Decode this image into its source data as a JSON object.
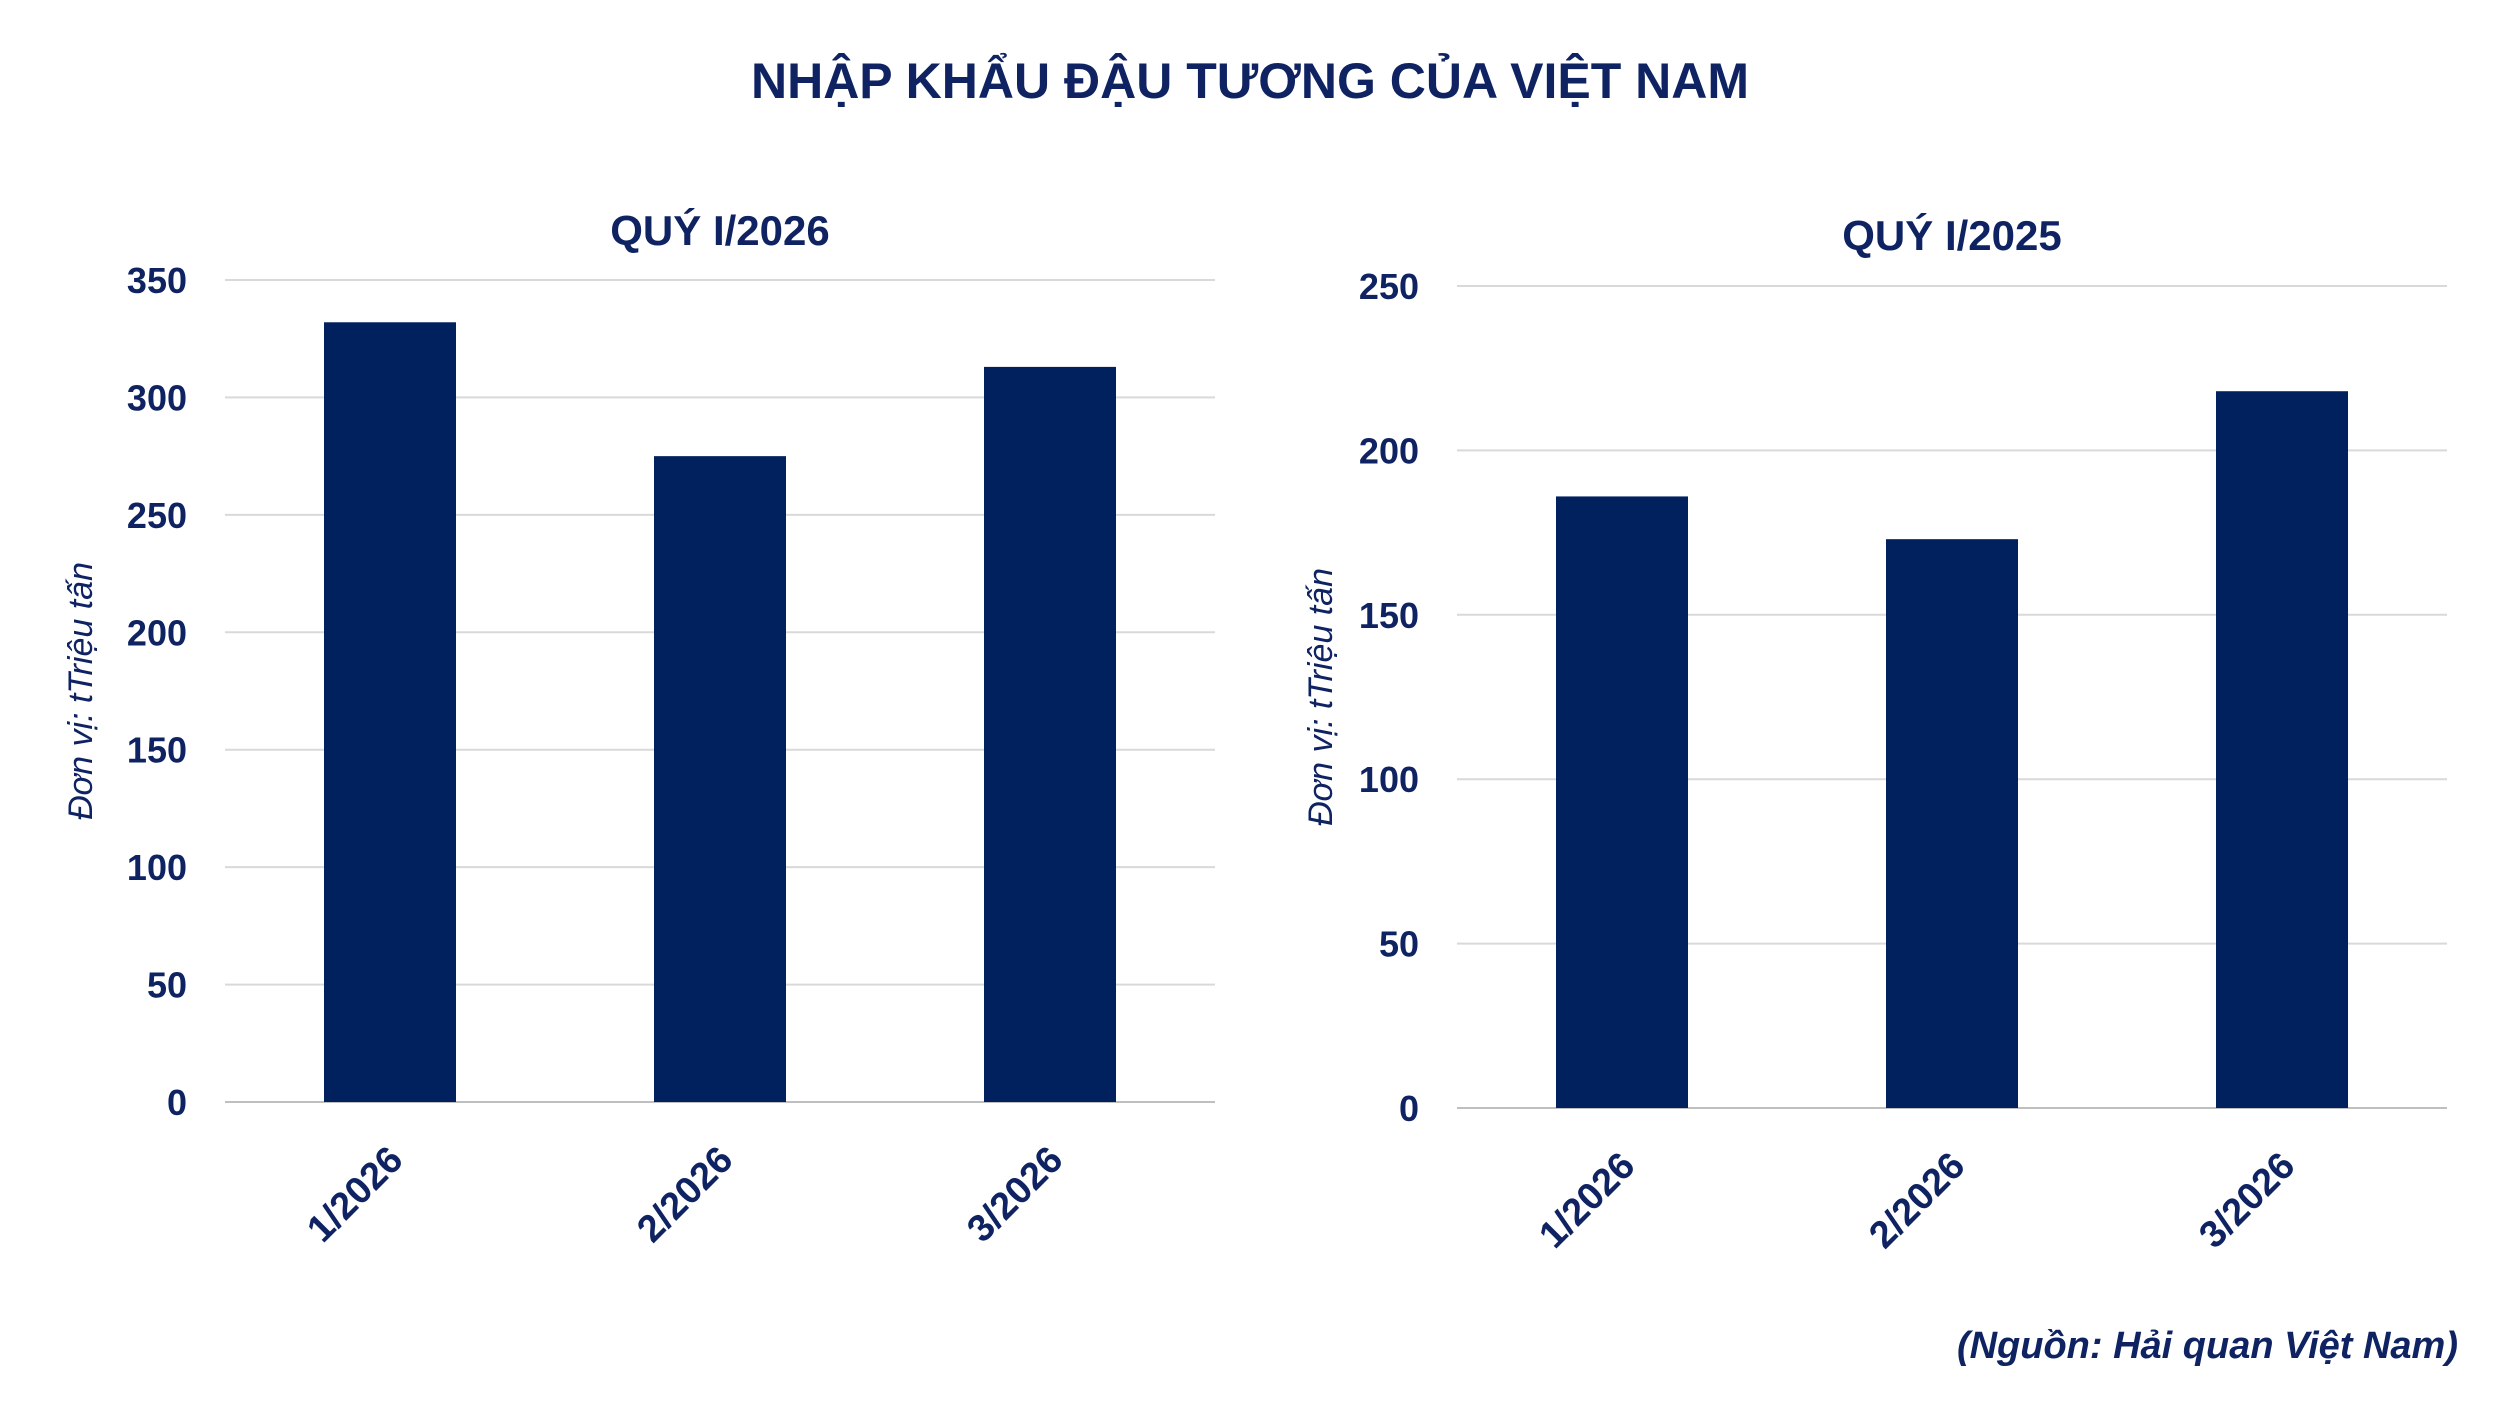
{
  "main_title": "NHẬP KHẨU ĐẬU TƯƠNG CỦA VIỆT NAM",
  "source": "(Nguồn: Hải quan Việt Nam)",
  "colors": {
    "bar": "#00215e",
    "text": "#0f2363",
    "grid": "#d9d9d9"
  },
  "chart_data": [
    {
      "type": "bar",
      "title": "QUÝ I/2026",
      "ylabel": "Đơn vị: tTriệu tấn",
      "xlabel": "",
      "categories": [
        "1/2026",
        "2/2026",
        "3/2026"
      ],
      "values": [
        332,
        275,
        313
      ],
      "ylim": [
        0,
        350
      ],
      "yticks": [
        "0",
        "50",
        "100",
        "150",
        "200",
        "250",
        "300",
        "350"
      ],
      "grid": true
    },
    {
      "type": "bar",
      "title": "QUÝ I/2025",
      "ylabel": "Đơn vị: tTriệu tấn",
      "xlabel": "",
      "categories": [
        "1/2026",
        "2/2026",
        "3/2026"
      ],
      "values": [
        186,
        173,
        218
      ],
      "ylim": [
        0,
        250
      ],
      "yticks": [
        "0",
        "50",
        "100",
        "150",
        "200",
        "250"
      ],
      "grid": true
    }
  ]
}
